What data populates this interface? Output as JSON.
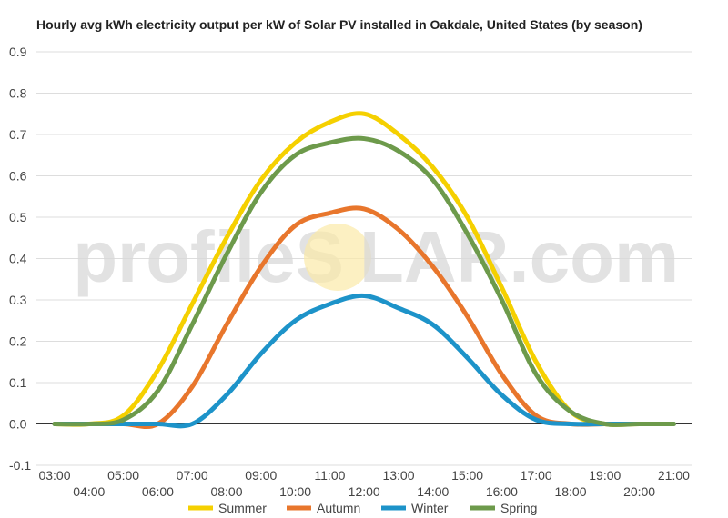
{
  "chart_data": {
    "type": "line",
    "title": "Hourly avg kWh electricity output per kW of Solar PV installed in Oakdale, United States (by season)",
    "xlabel": "",
    "ylabel": "",
    "x": [
      "03:00",
      "04:00",
      "05:00",
      "06:00",
      "07:00",
      "08:00",
      "09:00",
      "10:00",
      "11:00",
      "12:00",
      "13:00",
      "14:00",
      "15:00",
      "16:00",
      "17:00",
      "18:00",
      "19:00",
      "20:00",
      "21:00"
    ],
    "x_tick_labels_top": [
      "03:00",
      "05:00",
      "07:00",
      "09:00",
      "11:00",
      "13:00",
      "15:00",
      "17:00",
      "19:00",
      "21:00"
    ],
    "x_tick_labels_bottom": [
      "04:00",
      "06:00",
      "08:00",
      "10:00",
      "12:00",
      "14:00",
      "16:00",
      "18:00",
      "20:00"
    ],
    "y_ticks": [
      "-0.1",
      "0.0",
      "0.1",
      "0.2",
      "0.3",
      "0.4",
      "0.5",
      "0.6",
      "0.7",
      "0.8",
      "0.9"
    ],
    "ylim": [
      -0.1,
      0.9
    ],
    "grid": true,
    "legend_position": "bottom",
    "series": [
      {
        "name": "Summer",
        "color": "#f5d000",
        "values": [
          0.0,
          0.0,
          0.02,
          0.13,
          0.29,
          0.45,
          0.59,
          0.68,
          0.73,
          0.75,
          0.7,
          0.62,
          0.5,
          0.33,
          0.15,
          0.03,
          0.0,
          0.0,
          0.0
        ]
      },
      {
        "name": "Autumn",
        "color": "#e8762c",
        "values": [
          0.0,
          0.0,
          0.0,
          0.0,
          0.09,
          0.24,
          0.38,
          0.48,
          0.51,
          0.52,
          0.47,
          0.38,
          0.26,
          0.12,
          0.02,
          0.0,
          0.0,
          0.0,
          0.0
        ]
      },
      {
        "name": "Winter",
        "color": "#1d93c9",
        "values": [
          0.0,
          0.0,
          0.0,
          0.0,
          0.0,
          0.07,
          0.17,
          0.25,
          0.29,
          0.31,
          0.28,
          0.24,
          0.16,
          0.07,
          0.01,
          0.0,
          0.0,
          0.0,
          0.0
        ]
      },
      {
        "name": "Spring",
        "color": "#6d9a4b",
        "values": [
          0.0,
          0.0,
          0.01,
          0.08,
          0.24,
          0.41,
          0.56,
          0.65,
          0.68,
          0.69,
          0.66,
          0.59,
          0.46,
          0.3,
          0.12,
          0.03,
          0.0,
          0.0,
          0.0
        ]
      }
    ]
  },
  "watermark": {
    "text_left": "profileS",
    "text_right": "LAR.com"
  }
}
